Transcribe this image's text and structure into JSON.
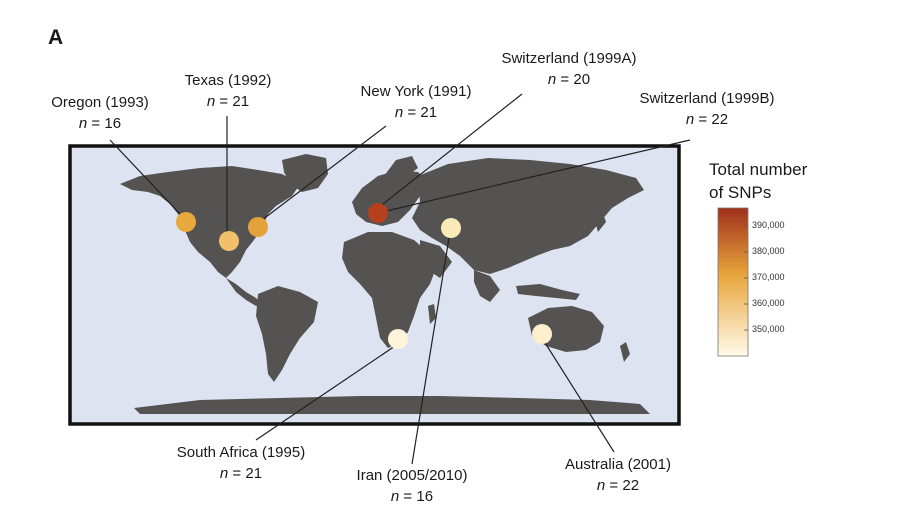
{
  "panel_label": "A",
  "sites": [
    {
      "name": "Oregon (1993)",
      "n": "16",
      "color": "#e8a93e"
    },
    {
      "name": "Texas (1992)",
      "n": "21",
      "color": "#f2c06a"
    },
    {
      "name": "New York (1991)",
      "n": "21",
      "color": "#e5a23a"
    },
    {
      "name": "Switzerland (1999A)",
      "n": "20",
      "color": "#b5401e"
    },
    {
      "name": "Switzerland (1999B)",
      "n": "22",
      "color": "#b5401e"
    },
    {
      "name": "South Africa (1995)",
      "n": "21",
      "color": "#fdf4d9"
    },
    {
      "name": "Iran (2005/2010)",
      "n": "16",
      "color": "#f9eab8"
    },
    {
      "name": "Australia (2001)",
      "n": "22",
      "color": "#fbefcc"
    }
  ],
  "legend": {
    "title_line1": "Total number",
    "title_line2": "of SNPs",
    "ticks": [
      "390,000",
      "380,000",
      "370,000",
      "360,000",
      "350,000"
    ],
    "color_high": "#a0301a",
    "color_mid": "#e8a53c",
    "color_low": "#fffbe9"
  },
  "n_prefix": "n",
  "colors": {
    "ocean": "#dde3f0",
    "land": "#555351",
    "frame": "#111111"
  }
}
